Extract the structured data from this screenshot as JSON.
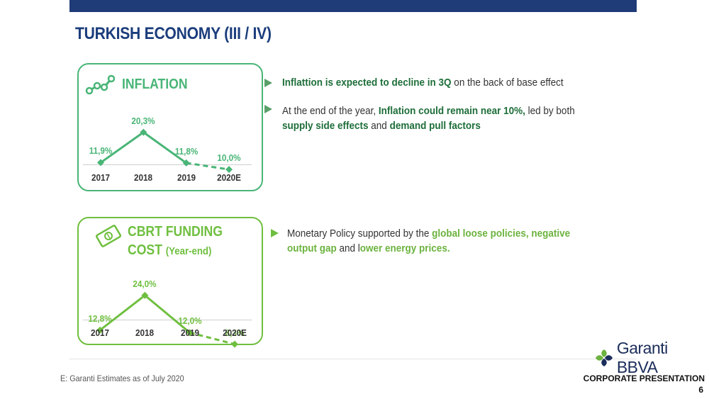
{
  "page": {
    "title": "TURKISH ECONOMY (III / IV)"
  },
  "inflation": {
    "title": "INFLATION",
    "icon": "line-chart-icon",
    "color": "#49b577",
    "chart_data": {
      "type": "line",
      "title": "INFLATION",
      "categories": [
        "2017",
        "2018",
        "2019",
        "2020E"
      ],
      "values": [
        11.9,
        20.3,
        11.8,
        10.0
      ],
      "labels": [
        "11,9%",
        "20,3%",
        "11,8%",
        "10,0%"
      ],
      "estimate_from_index": 2,
      "ylim": [
        0,
        22
      ]
    }
  },
  "cbrt": {
    "title_line1": "CBRT FUNDING",
    "title_line2": "COST",
    "title_suffix": "(Year-end)",
    "icon": "banknote-icon",
    "color": "#6fbf3f",
    "chart_data": {
      "type": "line",
      "title": "CBRT FUNDING COST (Year-end)",
      "categories": [
        "2017",
        "2018",
        "2019",
        "2020E"
      ],
      "values": [
        12.8,
        24.0,
        12.0,
        8.3
      ],
      "labels": [
        "12,8%",
        "24,0%",
        "12,0%",
        "8,3%"
      ],
      "estimate_from_index": 2,
      "ylim": [
        0,
        26
      ]
    }
  },
  "bullets": {
    "b1": {
      "bold": "Inflattion is expected to decline in 3Q",
      "rest": " on the back of base effect"
    },
    "b2": {
      "t1": "At the end of the year, ",
      "b1": "Inflation could remain near 10%,",
      "t2": " led by both ",
      "b2": "supply side effects",
      "t3": " and ",
      "b3": "demand pull factors"
    },
    "b3": {
      "t1": "Monetary Policy supported by the ",
      "g1": "global loose policies, negative output gap",
      "t2": " and l",
      "g2": "ower energy prices."
    }
  },
  "footer": {
    "note": "E: Garanti Estimates as of July 2020",
    "brand": "Garanti BBVA",
    "corporate": "CORPORATE PRESENTATION",
    "page_number": "6"
  }
}
